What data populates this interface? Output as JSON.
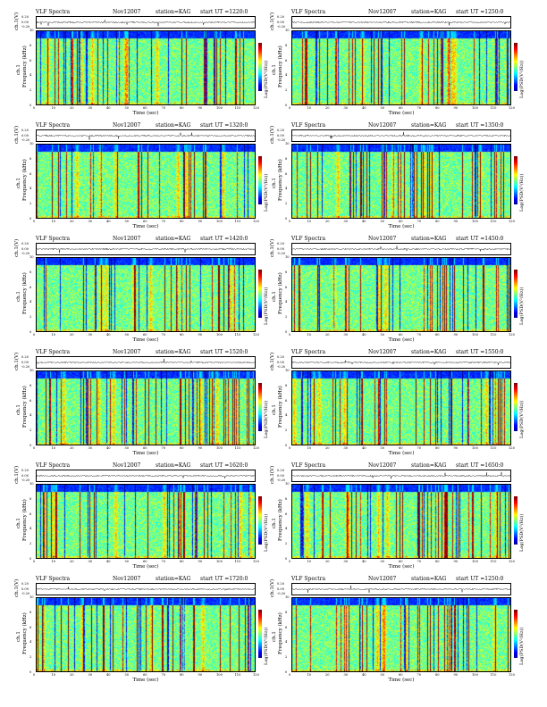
{
  "colors": {
    "colormap": [
      "#00008f",
      "#0000ff",
      "#0080ff",
      "#00ffff",
      "#80ff80",
      "#ffff00",
      "#ff8000",
      "#ff0000",
      "#800000"
    ],
    "trace": "#000000",
    "background": "#ffffff"
  },
  "common": {
    "title_left": "VLF Spectra",
    "date": "Nov12007",
    "station": "station=KAG",
    "start_prefix": "start  UT  =",
    "x_axis_label": "Time  (sec)",
    "y_axis_label": "Frequency  (kHz)",
    "ch_label": "ch.1",
    "trace_label": "ch.1(V)",
    "colorbar_label": "Log(PSD(V²/Hz))",
    "trace_ticks": [
      "0.20",
      "0.00",
      "-0.20"
    ]
  },
  "chart_data": [
    {
      "type": "heatmap",
      "panel": "row1-left",
      "start_ut": "1220:0",
      "x_range": [
        0,
        120
      ],
      "x_ticks": [
        0,
        10,
        20,
        30,
        40,
        50,
        60,
        70,
        80,
        90,
        100,
        110,
        120
      ],
      "y_range": [
        0,
        10
      ],
      "y_ticks": [
        0,
        2,
        4,
        6,
        8,
        10
      ]
    },
    {
      "type": "heatmap",
      "panel": "row1-right",
      "start_ut": "1250:0",
      "x_range": [
        0,
        120
      ],
      "x_ticks": [
        0,
        10,
        20,
        30,
        40,
        50,
        60,
        70,
        80,
        90,
        100,
        110,
        120
      ],
      "y_range": [
        0,
        10
      ],
      "y_ticks": [
        0,
        2,
        4,
        6,
        8,
        10
      ]
    },
    {
      "type": "heatmap",
      "panel": "row2-left",
      "start_ut": "1320:0",
      "x_range": [
        0,
        120
      ],
      "x_ticks": [
        0,
        10,
        20,
        30,
        40,
        50,
        60,
        70,
        80,
        90,
        100,
        110,
        120
      ],
      "y_range": [
        0,
        10
      ],
      "y_ticks": [
        0,
        2,
        4,
        6,
        8,
        10
      ]
    },
    {
      "type": "heatmap",
      "panel": "row2-right",
      "start_ut": "1350:0",
      "x_range": [
        0,
        120
      ],
      "x_ticks": [
        0,
        10,
        20,
        30,
        40,
        50,
        60,
        70,
        80,
        90,
        100,
        110,
        120
      ],
      "y_range": [
        0,
        10
      ],
      "y_ticks": [
        0,
        2,
        4,
        6,
        8,
        10
      ]
    },
    {
      "type": "heatmap",
      "panel": "row3-left",
      "start_ut": "1420:0",
      "x_range": [
        0,
        120
      ],
      "x_ticks": [
        0,
        10,
        20,
        30,
        40,
        50,
        60,
        70,
        80,
        90,
        100,
        110,
        120
      ],
      "y_range": [
        0,
        10
      ],
      "y_ticks": [
        0,
        2,
        4,
        6,
        8,
        10
      ]
    },
    {
      "type": "heatmap",
      "panel": "row3-right",
      "start_ut": "1450:0",
      "x_range": [
        0,
        120
      ],
      "x_ticks": [
        0,
        10,
        20,
        30,
        40,
        50,
        60,
        70,
        80,
        90,
        100,
        110,
        120
      ],
      "y_range": [
        0,
        10
      ],
      "y_ticks": [
        0,
        2,
        4,
        6,
        8,
        10
      ]
    },
    {
      "type": "heatmap",
      "panel": "row4-left",
      "start_ut": "1520:0",
      "x_range": [
        0,
        120
      ],
      "x_ticks": [
        0,
        10,
        20,
        30,
        40,
        50,
        60,
        70,
        80,
        90,
        100,
        110,
        120
      ],
      "y_range": [
        0,
        10
      ],
      "y_ticks": [
        0,
        2,
        4,
        6,
        8,
        10
      ]
    },
    {
      "type": "heatmap",
      "panel": "row4-right",
      "start_ut": "1550:0",
      "x_range": [
        0,
        120
      ],
      "x_ticks": [
        0,
        10,
        20,
        30,
        40,
        50,
        60,
        70,
        80,
        90,
        100,
        110,
        120
      ],
      "y_range": [
        0,
        10
      ],
      "y_ticks": [
        0,
        2,
        4,
        6,
        8,
        10
      ]
    },
    {
      "type": "heatmap",
      "panel": "row5-left",
      "start_ut": "1620:0",
      "x_range": [
        0,
        120
      ],
      "x_ticks": [
        0,
        10,
        20,
        30,
        40,
        50,
        60,
        70,
        80,
        90,
        100,
        110,
        120
      ],
      "y_range": [
        0,
        10
      ],
      "y_ticks": [
        0,
        2,
        4,
        6,
        8,
        10
      ]
    },
    {
      "type": "heatmap",
      "panel": "row5-right",
      "start_ut": "1650:0",
      "x_range": [
        0,
        120
      ],
      "x_ticks": [
        0,
        10,
        20,
        30,
        40,
        50,
        60,
        70,
        80,
        90,
        100,
        110,
        120
      ],
      "y_range": [
        0,
        10
      ],
      "y_ticks": [
        0,
        2,
        4,
        6,
        8,
        10
      ]
    },
    {
      "type": "heatmap",
      "panel": "row6-left",
      "start_ut": "1720:0",
      "x_range": [
        0,
        120
      ],
      "x_ticks": [
        0,
        10,
        20,
        30,
        40,
        50,
        60,
        70,
        80,
        90,
        100,
        110,
        120
      ],
      "y_range": [
        0,
        10
      ],
      "y_ticks": [
        0,
        2,
        4,
        6,
        8,
        10
      ]
    },
    {
      "type": "heatmap",
      "panel": "row6-right",
      "start_ut": "1250:0",
      "x_range": [
        0,
        120
      ],
      "x_ticks": [
        0,
        10,
        20,
        30,
        40,
        50,
        60,
        70,
        80,
        90,
        100,
        110,
        120
      ],
      "y_range": [
        0,
        10
      ],
      "y_ticks": [
        0,
        2,
        4,
        6,
        8,
        10
      ]
    }
  ]
}
